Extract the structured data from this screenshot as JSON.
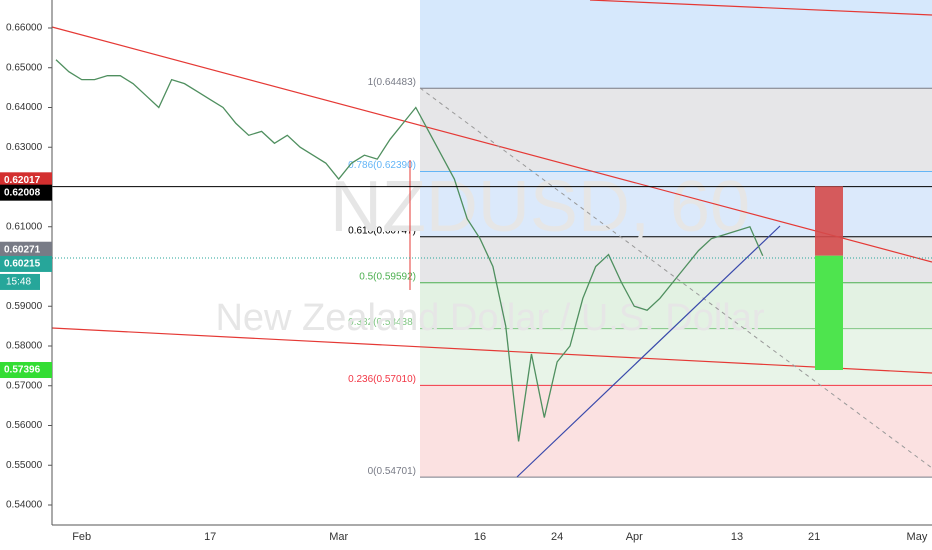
{
  "chart_data": {
    "type": "line",
    "watermark": "NZDUSD, 60",
    "subtitle": "New Zealand Dollar / U.S. Dollar",
    "categories": [
      null,
      null,
      "Feb",
      null,
      null,
      null,
      null,
      null,
      null,
      null,
      null,
      null,
      "17",
      null,
      null,
      null,
      null,
      null,
      null,
      null,
      null,
      null,
      "Mar",
      null,
      null,
      null,
      null,
      null,
      null,
      null,
      null,
      null,
      null,
      "16",
      null,
      null,
      null,
      null,
      null,
      "24",
      null,
      null,
      null,
      null,
      null,
      "Apr",
      null,
      null,
      null,
      null,
      null,
      null,
      null,
      "13",
      null,
      null,
      null,
      null,
      null,
      "21",
      null,
      null,
      null,
      null,
      null,
      null,
      null,
      "May"
    ],
    "series": [
      {
        "color": "#4f8f5f",
        "values": [
          0.652,
          0.649,
          0.647,
          0.647,
          0.648,
          0.648,
          0.646,
          0.643,
          0.64,
          0.647,
          0.646,
          0.644,
          0.642,
          0.64,
          0.636,
          0.633,
          0.634,
          0.631,
          0.633,
          0.63,
          0.628,
          0.626,
          0.622,
          0.626,
          0.628,
          0.627,
          0.632,
          0.636,
          0.64,
          0.634,
          0.628,
          0.622,
          0.612,
          0.607,
          0.6,
          0.585,
          0.556,
          0.578,
          0.562,
          0.576,
          0.58,
          0.592,
          0.6,
          0.603,
          0.596,
          0.59,
          0.589,
          0.592,
          0.596,
          0.6,
          0.604,
          0.607,
          0.608,
          0.609,
          0.61,
          0.6027,
          null,
          null,
          null,
          null,
          null,
          null,
          null,
          null,
          null,
          null,
          null,
          null
        ]
      }
    ],
    "ylim": [
      0.53497,
      0.66704
    ],
    "yticks": [
      {
        "value": 0.54,
        "label": "0.54000"
      },
      {
        "value": 0.55,
        "label": "0.55000"
      },
      {
        "value": 0.56,
        "label": "0.56000"
      },
      {
        "value": 0.57,
        "label": "0.57000"
      },
      {
        "value": 0.58,
        "label": "0.58000"
      },
      {
        "value": 0.59,
        "label": "0.59000"
      },
      {
        "value": 0.6,
        "label": "0.60000"
      },
      {
        "value": 0.61,
        "label": "0.61000"
      },
      {
        "value": 0.62,
        "label": "0.62000"
      },
      {
        "value": 0.63,
        "label": "0.63000"
      },
      {
        "value": 0.64,
        "label": "0.64000"
      },
      {
        "value": 0.65,
        "label": "0.65000"
      },
      {
        "value": 0.66,
        "label": "0.66000"
      }
    ],
    "fib_levels": [
      {
        "label": "1(0.64483)",
        "value": 0.64483,
        "color": "#787b86"
      },
      {
        "label": "0.786(0.62390)",
        "value": 0.6239,
        "color": "#64b5f6"
      },
      {
        "label": "0.618(0.60747)",
        "value": 0.60747,
        "color": "#000000"
      },
      {
        "label": "0.5(0.59592)",
        "value": 0.59592,
        "color": "#4caf50"
      },
      {
        "label": "0.382(0.58438)",
        "value": 0.58438,
        "color": "#81c784"
      },
      {
        "label": "0.236(0.57010)",
        "value": 0.5701,
        "color": "#f23645"
      },
      {
        "label": "0(0.54701)",
        "value": 0.54701,
        "color": "#787b86"
      }
    ],
    "price_tags": [
      {
        "label": "0.62017",
        "value": 0.62017,
        "color": "#d32f2f"
      },
      {
        "label": "0.62008",
        "value": 0.62008,
        "color": "#000000"
      },
      {
        "label": "0.60271",
        "value": 0.60271,
        "color": "#787b86"
      },
      {
        "label": "0.60215",
        "value": 0.60215,
        "color": "#26a69a"
      },
      {
        "label": "0.57396",
        "value": 0.57396,
        "color": "#33dd33"
      }
    ],
    "time_tag": "15:48"
  }
}
